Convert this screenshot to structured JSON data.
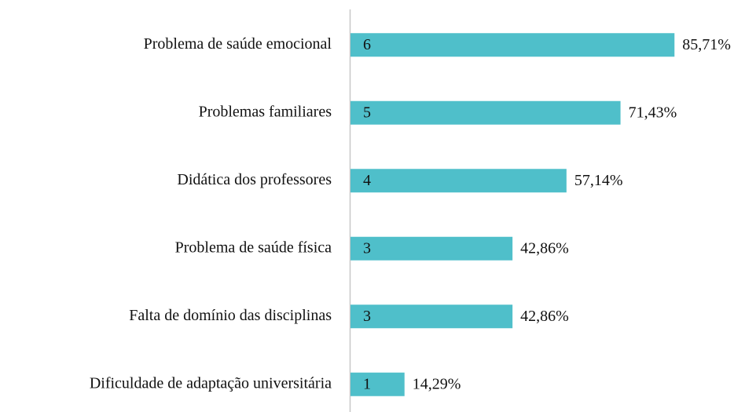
{
  "chart_data": {
    "type": "bar",
    "orientation": "horizontal",
    "categories": [
      "Problema de saúde emocional",
      "Problemas familiares",
      "Didática dos professores",
      "Problema de saúde física",
      "Falta de domínio das disciplinas",
      "Dificuldade de adaptação universitária"
    ],
    "values": [
      85.71,
      71.43,
      57.14,
      42.86,
      42.86,
      14.29
    ],
    "value_labels": [
      "85,71%",
      "71,43%",
      "57,14%",
      "42,86%",
      "42,86%",
      "14,29%"
    ],
    "counts": [
      6,
      5,
      4,
      3,
      3,
      1
    ],
    "color": "#4fbfca",
    "xlim": [
      0,
      100
    ]
  }
}
